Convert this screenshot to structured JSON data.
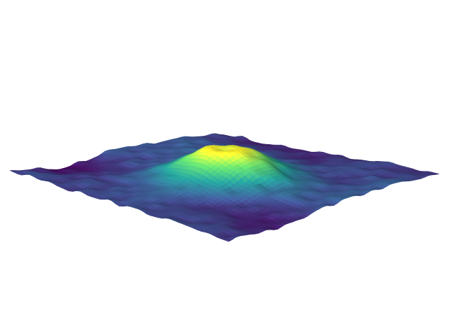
{
  "chart_data": {
    "type": "surface3d",
    "title": "",
    "xlabel": "",
    "ylabel": "",
    "zlabel": "",
    "axes_visible": false,
    "grid": false,
    "legend": "none",
    "colormap": "viridis",
    "colormap_stops": [
      "#440154",
      "#3b528b",
      "#21918c",
      "#5ec962",
      "#fde725"
    ],
    "x_range": [
      0,
      1
    ],
    "y_range": [
      0,
      1
    ],
    "z_range": [
      0,
      1
    ],
    "grid_resolution": 56,
    "peak": {
      "x": 0.5,
      "y": 0.5,
      "height": 1.0,
      "radius": 0.13,
      "crater_depth": 0.15,
      "crater_radius": 0.035
    },
    "base_noise_amplitude": 0.13,
    "fine_noise_amplitude": 0.05,
    "noise_seed": 7
  }
}
